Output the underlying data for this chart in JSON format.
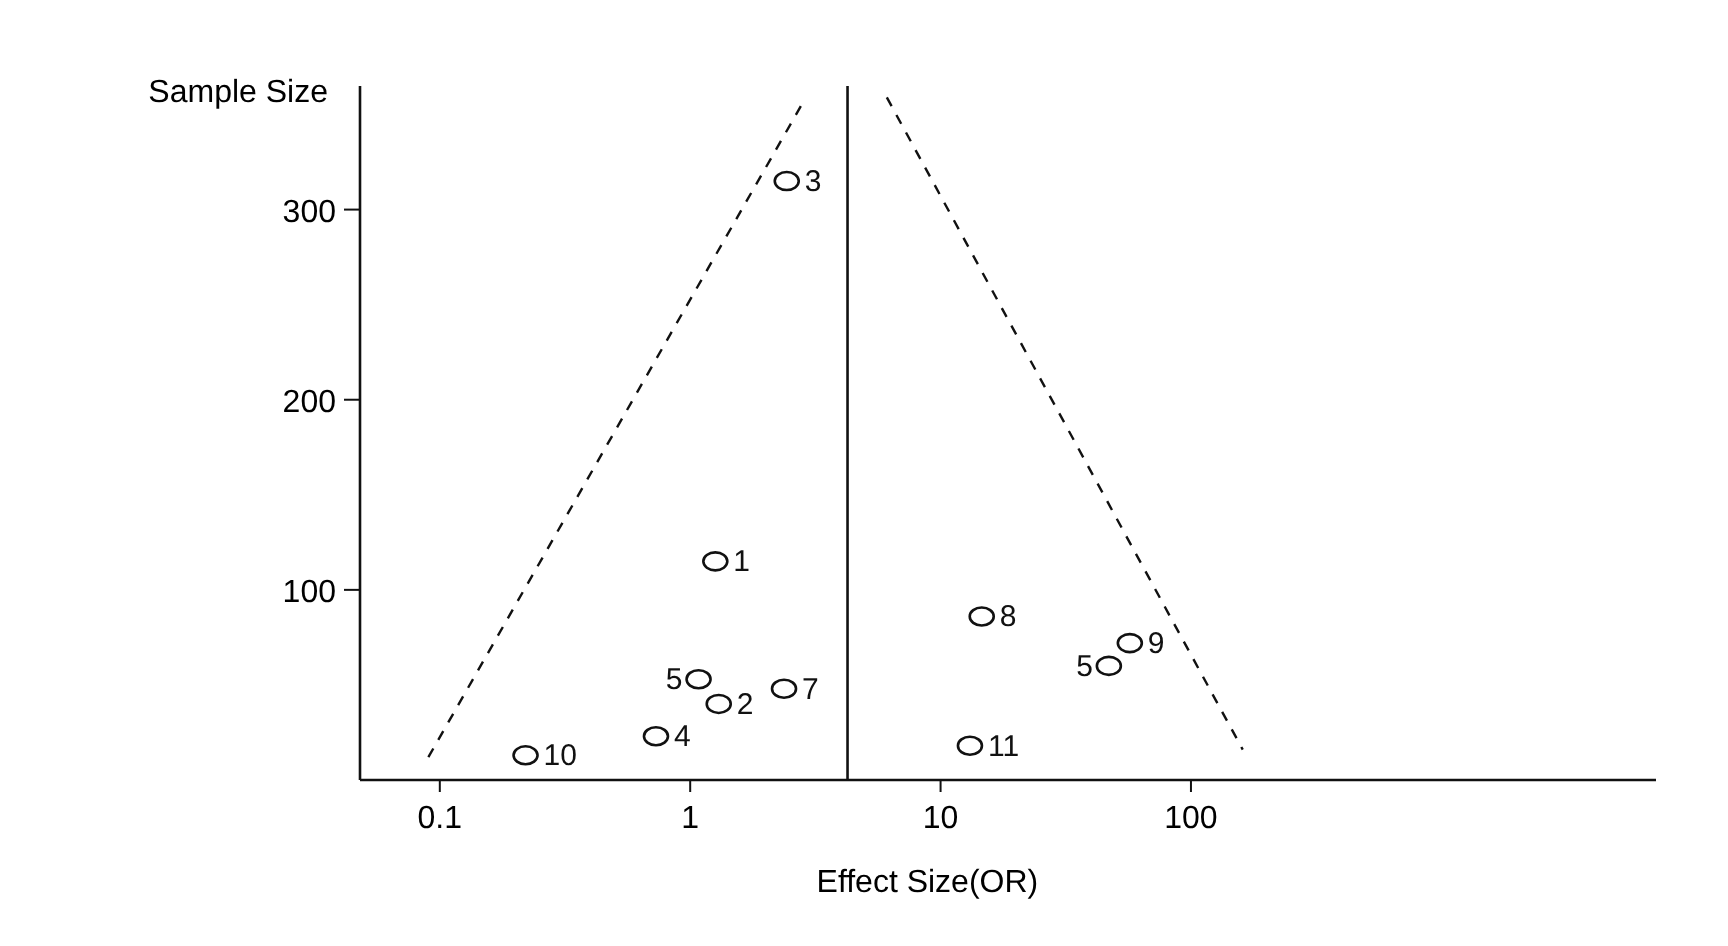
{
  "chart_data": {
    "type": "scatter",
    "xlabel": "Effect Size(OR)",
    "ylabel": "Sample Size",
    "log": "x",
    "xlim": [
      0.048,
      7200
    ],
    "xticks": [
      {
        "value": 0.1,
        "label": "0.1"
      },
      1,
      10,
      100
    ],
    "ylim": [
      0,
      365
    ],
    "yticks": [
      100,
      200,
      300
    ],
    "grid": false,
    "marker": "circle",
    "series": [
      {
        "color": "#111111",
        "x": [
          2.43,
          1.26,
          14.6,
          57,
          47,
          1.08,
          2.37,
          1.3,
          0.73,
          0.22,
          13.1
        ],
        "values": [
          315,
          115,
          86,
          72,
          60,
          53,
          48,
          40,
          23,
          13,
          18
        ]
      },
      {
        "type": "line",
        "color": "#111111",
        "line_style": "dashed",
        "marker": "none",
        "x": [
          0.09,
          2.84
        ],
        "values": [
          12,
          357
        ]
      },
      {
        "type": "line",
        "color": "#111111",
        "line_style": "dashed",
        "marker": "none",
        "x": [
          6.1,
          161
        ],
        "values": [
          359,
          16
        ]
      }
    ],
    "ref_lines": [
      {
        "axis": "x",
        "value": 4.25,
        "color": "#111111",
        "line_style": "solid"
      }
    ],
    "annotations": [
      {
        "text": "3",
        "x": 2.43,
        "y": 315
      },
      {
        "text": "1",
        "x": 1.26,
        "y": 115
      },
      {
        "text": "8",
        "x": 14.6,
        "y": 86
      },
      {
        "text": "9",
        "x": 57,
        "y": 72
      },
      {
        "text": "5",
        "x": 47,
        "y": 60
      },
      {
        "text": "5",
        "x": 1.08,
        "y": 53
      },
      {
        "text": "7",
        "x": 2.37,
        "y": 48
      },
      {
        "text": "2",
        "x": 1.3,
        "y": 40
      },
      {
        "text": "4",
        "x": 0.73,
        "y": 23
      },
      {
        "text": "10",
        "x": 0.22,
        "y": 13
      },
      {
        "text": "11",
        "x": 13.1,
        "y": 18
      }
    ]
  }
}
